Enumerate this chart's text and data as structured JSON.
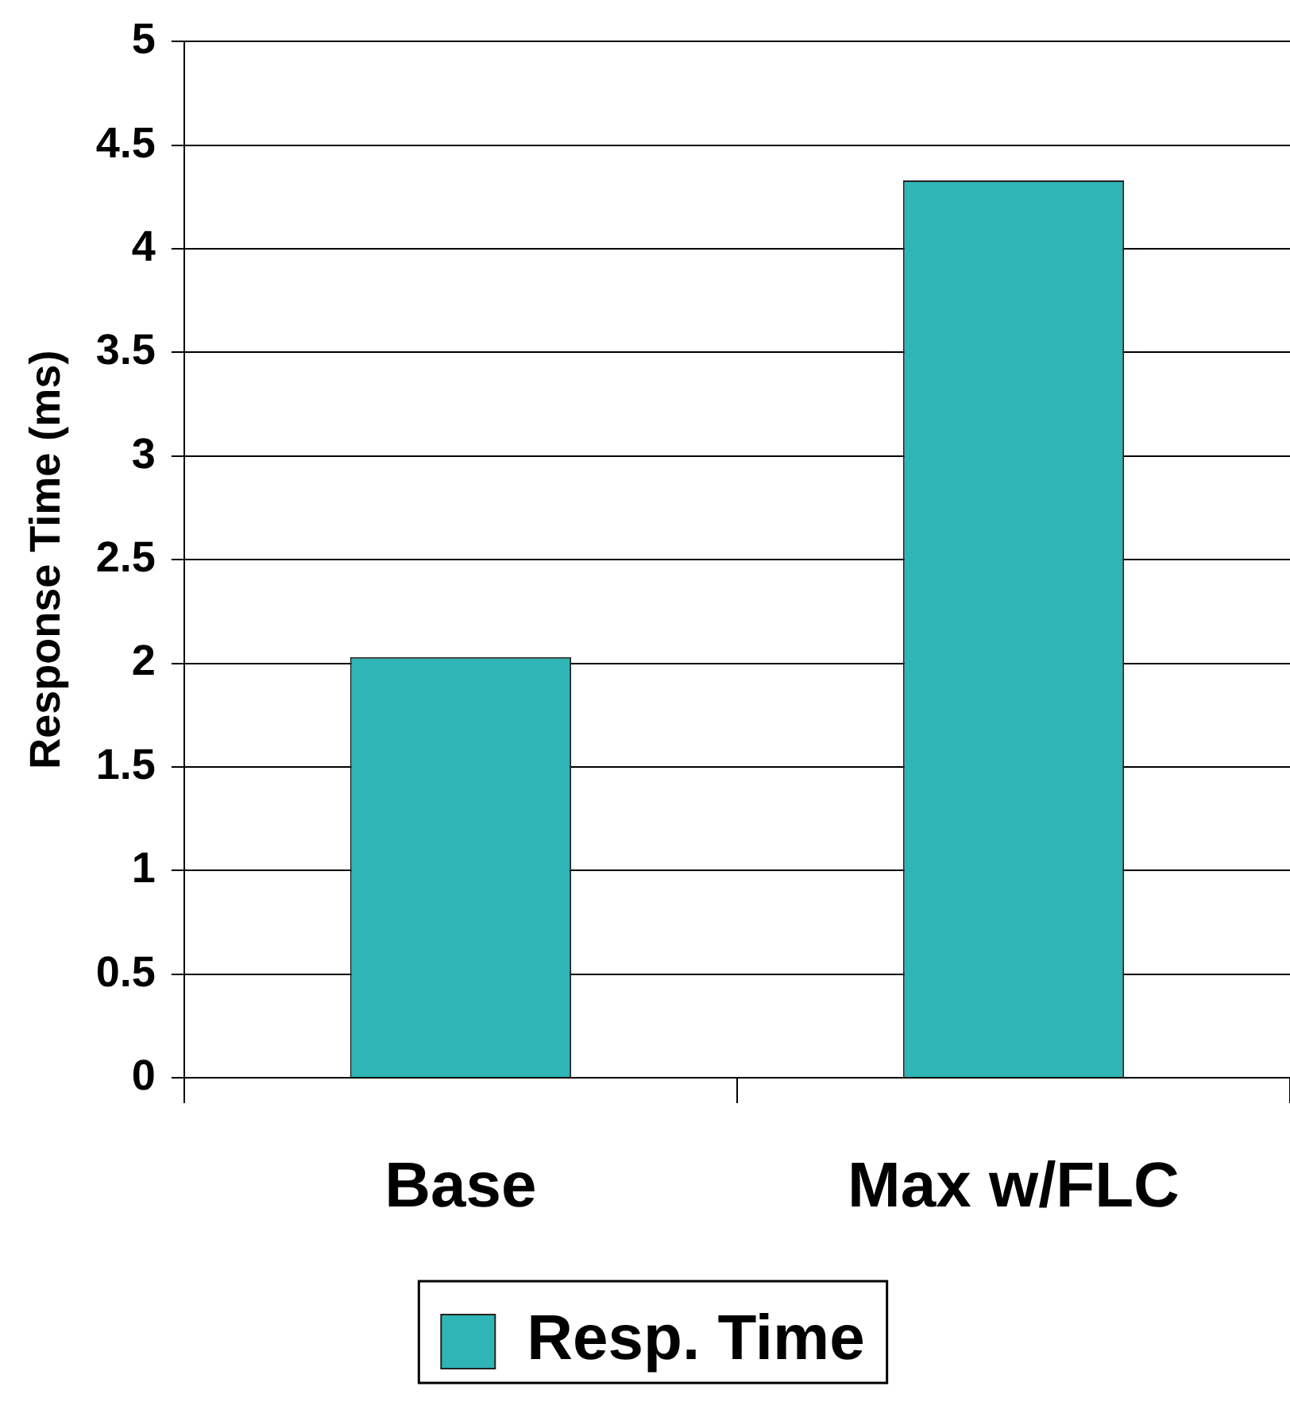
{
  "chart_data": {
    "type": "bar",
    "ylabel": "Response Time (ms)",
    "categories": [
      "Base",
      "Max w/FLC"
    ],
    "series": [
      {
        "name": "Resp. Time",
        "color": "#2fb5b5",
        "values": [
          2.03,
          4.33
        ]
      }
    ],
    "ylim": [
      0,
      5
    ],
    "yticks": [
      0,
      0.5,
      1,
      1.5,
      2,
      2.5,
      3,
      3.5,
      4,
      4.5,
      5
    ],
    "grid": "y",
    "legend": "bottom"
  }
}
